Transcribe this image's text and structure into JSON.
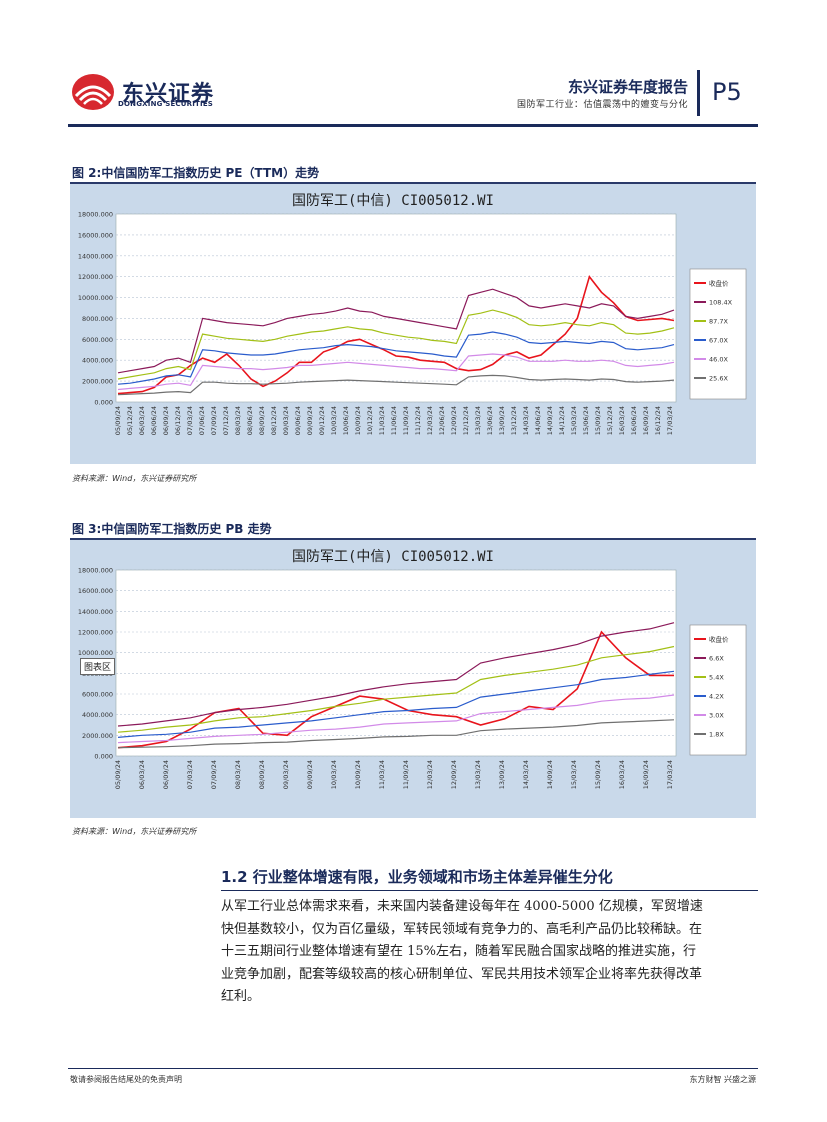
{
  "header": {
    "logo_cn": "东兴证券",
    "logo_en": "DONGXING SECURITIES",
    "report_title": "东兴证券年度报告",
    "report_subtitle": "国防军工行业：估值震荡中的嬗变与分化",
    "page": "P5",
    "colors": {
      "navy": "#1a2a5a",
      "logo_red": "#d7282f"
    }
  },
  "figures": [
    {
      "caption": "图 2:中信国防军工指数历史 PE（TTM）走势",
      "source": "资料来源：Wind，东兴证券研究所",
      "chart_data": {
        "type": "line",
        "title": "国防军工(中信) CI005012.WI",
        "yticks": [
          "0.000",
          "2000.000",
          "4000.000",
          "6000.000",
          "8000.000",
          "10000.000",
          "12000.000",
          "14000.000",
          "16000.000",
          "18000.000"
        ],
        "ylim": [
          0,
          18000
        ],
        "xticks": [
          "05/09/24",
          "05/12/24",
          "06/03/24",
          "06/06/24",
          "06/09/24",
          "06/12/24",
          "07/03/24",
          "07/06/24",
          "07/09/24",
          "07/12/24",
          "08/03/24",
          "08/06/24",
          "08/09/24",
          "08/12/24",
          "09/03/24",
          "09/06/24",
          "09/09/24",
          "09/12/24",
          "10/03/24",
          "10/06/24",
          "10/09/24",
          "10/12/24",
          "11/03/24",
          "11/06/24",
          "11/09/24",
          "11/12/24",
          "12/03/24",
          "12/06/24",
          "12/09/24",
          "12/12/24",
          "13/03/24",
          "13/06/24",
          "13/09/24",
          "13/12/24",
          "14/03/24",
          "14/06/24",
          "14/09/24",
          "14/12/24",
          "15/03/24",
          "15/06/24",
          "15/09/24",
          "15/12/24",
          "16/03/24",
          "16/06/24",
          "16/09/24",
          "16/12/24",
          "17/03/24"
        ],
        "legend_position": "right",
        "series": [
          {
            "name": "收盘价",
            "color": "#e8141c",
            "values": [
              800,
              900,
              1000,
              1400,
              2400,
              2600,
              3500,
              4200,
              3800,
              4600,
              3500,
              2200,
              1500,
              2000,
              2800,
              3800,
              3800,
              4800,
              5200,
              5800,
              6000,
              5500,
              5000,
              4400,
              4300,
              4000,
              3900,
              3800,
              3200,
              3000,
              3100,
              3600,
              4500,
              4800,
              4200,
              4500,
              5500,
              6500,
              8000,
              12000,
              10500,
              9500,
              8200,
              7800,
              7900,
              8000,
              7800
            ]
          },
          {
            "name": "108.4X",
            "color": "#8b1a5a",
            "values": [
              2800,
              3000,
              3200,
              3400,
              4000,
              4200,
              3800,
              8000,
              7800,
              7600,
              7500,
              7400,
              7300,
              7600,
              8000,
              8200,
              8400,
              8500,
              8700,
              9000,
              8700,
              8600,
              8200,
              8000,
              7800,
              7600,
              7400,
              7200,
              7000,
              10200,
              10500,
              10800,
              10400,
              10000,
              9200,
              9000,
              9200,
              9400,
              9200,
              9000,
              9400,
              9200,
              8200,
              8000,
              8200,
              8400,
              8800
            ]
          },
          {
            "name": "87.7X",
            "color": "#a3c016",
            "values": [
              2200,
              2400,
              2600,
              2800,
              3200,
              3400,
              3100,
              6500,
              6300,
              6100,
              6000,
              5900,
              5800,
              6000,
              6300,
              6500,
              6700,
              6800,
              7000,
              7200,
              7000,
              6900,
              6600,
              6400,
              6200,
              6100,
              5900,
              5800,
              5600,
              8300,
              8500,
              8800,
              8500,
              8100,
              7400,
              7300,
              7400,
              7600,
              7400,
              7300,
              7600,
              7400,
              6600,
              6500,
              6600,
              6800,
              7100
            ]
          },
          {
            "name": "67.0X",
            "color": "#2a5ccc",
            "values": [
              1700,
              1800,
              2000,
              2200,
              2500,
              2600,
              2400,
              5000,
              4900,
              4700,
              4600,
              4500,
              4500,
              4600,
              4800,
              5000,
              5100,
              5200,
              5400,
              5500,
              5400,
              5300,
              5100,
              4900,
              4800,
              4700,
              4600,
              4400,
              4300,
              6400,
              6500,
              6700,
              6500,
              6200,
              5700,
              5600,
              5700,
              5800,
              5700,
              5600,
              5800,
              5700,
              5100,
              5000,
              5100,
              5200,
              5500
            ]
          },
          {
            "name": "46.0X",
            "color": "#d28ae8",
            "values": [
              1200,
              1300,
              1400,
              1500,
              1700,
              1800,
              1600,
              3500,
              3400,
              3300,
              3200,
              3200,
              3100,
              3200,
              3300,
              3500,
              3500,
              3600,
              3700,
              3800,
              3700,
              3600,
              3500,
              3400,
              3300,
              3200,
              3200,
              3100,
              3000,
              4400,
              4500,
              4600,
              4500,
              4300,
              3900,
              3900,
              3900,
              4000,
              3900,
              3900,
              4000,
              3900,
              3500,
              3400,
              3500,
              3600,
              3800
            ]
          },
          {
            "name": "25.6X",
            "color": "#707070",
            "values": [
              700,
              750,
              800,
              850,
              950,
              1000,
              900,
              1900,
              1900,
              1800,
              1750,
              1750,
              1700,
              1750,
              1800,
              1900,
              1950,
              2000,
              2050,
              2100,
              2050,
              2000,
              1950,
              1900,
              1850,
              1800,
              1750,
              1700,
              1650,
              2400,
              2500,
              2550,
              2500,
              2350,
              2150,
              2100,
              2150,
              2200,
              2150,
              2100,
              2200,
              2150,
              1950,
              1900,
              1950,
              2000,
              2100
            ]
          }
        ]
      }
    },
    {
      "caption": "图 3:中信国防军工指数历史 PB 走势",
      "source": "资料来源：Wind，东兴证券研究所",
      "tooltip": "图表区",
      "chart_data": {
        "type": "line",
        "title": "国防军工(中信) CI005012.WI",
        "yticks": [
          "0.000",
          "2000.000",
          "4000.000",
          "6000.000",
          "8000.000",
          "10000.000",
          "12000.000",
          "14000.000",
          "16000.000",
          "18000.000"
        ],
        "ylim": [
          0,
          18000
        ],
        "xticks": [
          "05/09/24",
          "06/03/24",
          "06/09/24",
          "07/03/24",
          "07/09/24",
          "08/03/24",
          "08/09/24",
          "09/03/24",
          "09/09/24",
          "10/03/24",
          "10/09/24",
          "11/03/24",
          "11/09/24",
          "12/03/24",
          "12/09/24",
          "13/03/24",
          "13/09/24",
          "14/03/24",
          "14/09/24",
          "15/03/24",
          "15/09/24",
          "16/03/24",
          "16/09/24",
          "17/03/24"
        ],
        "legend_position": "right",
        "series": [
          {
            "name": "收盘价",
            "color": "#e8141c",
            "values": [
              800,
              1000,
              1400,
              2600,
              4200,
              4600,
              2200,
              2000,
              3800,
              4800,
              5800,
              5500,
              4400,
              4000,
              3800,
              3000,
              3600,
              4800,
              4500,
              6500,
              12000,
              9500,
              7800,
              7800
            ]
          },
          {
            "name": "6.6X",
            "color": "#8b1a5a",
            "values": [
              2900,
              3100,
              3400,
              3700,
              4200,
              4500,
              4700,
              5000,
              5400,
              5800,
              6300,
              6700,
              7000,
              7200,
              7400,
              9000,
              9500,
              9900,
              10300,
              10800,
              11600,
              12000,
              12300,
              12900
            ]
          },
          {
            "name": "5.4X",
            "color": "#a3c016",
            "values": [
              2300,
              2500,
              2800,
              3000,
              3400,
              3700,
              3800,
              4100,
              4400,
              4800,
              5100,
              5500,
              5700,
              5900,
              6100,
              7400,
              7800,
              8100,
              8400,
              8800,
              9500,
              9800,
              10100,
              10600
            ]
          },
          {
            "name": "4.2X",
            "color": "#2a5ccc",
            "values": [
              1800,
              2000,
              2100,
              2300,
              2700,
              2800,
              3000,
              3200,
              3400,
              3700,
              4000,
              4300,
              4400,
              4600,
              4700,
              5700,
              6000,
              6300,
              6600,
              6900,
              7400,
              7600,
              7900,
              8200
            ]
          },
          {
            "name": "3.0X",
            "color": "#d28ae8",
            "values": [
              1300,
              1400,
              1500,
              1700,
              1900,
              2000,
              2100,
              2300,
              2500,
              2600,
              2800,
              3100,
              3200,
              3300,
              3400,
              4100,
              4300,
              4500,
              4700,
              4900,
              5300,
              5500,
              5600,
              5900
            ]
          },
          {
            "name": "1.8X",
            "color": "#707070",
            "values": [
              800,
              850,
              900,
              1000,
              1150,
              1200,
              1300,
              1350,
              1500,
              1600,
              1700,
              1850,
              1900,
              2000,
              2000,
              2450,
              2600,
              2700,
              2800,
              2950,
              3200,
              3300,
              3400,
              3500
            ]
          }
        ]
      }
    }
  ],
  "section": {
    "title": "1.2 行业整体增速有限，业务领域和市场主体差异催生分化",
    "lines": [
      "从军工行业总体需求来看，未来国内装备建设每年在 4000-5000 亿规模，军贸增速",
      "快但基数较小，仅为百亿量级，军转民领域有竞争力的、高毛利产品仍比较稀缺。在",
      "十三五期间行业整体增速有望在 15%左右，随着军民融合国家战略的推进实施，行",
      "业竞争加剧，配套等级较高的核心研制单位、军民共用技术领军企业将率先获得改革",
      "红利。"
    ]
  },
  "footer": {
    "left": "敬请参阅报告结尾处的免责声明",
    "right": "东方财智 兴盛之源"
  }
}
